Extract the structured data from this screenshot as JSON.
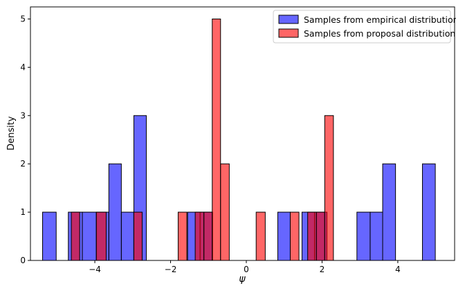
{
  "chart_data": {
    "type": "bar",
    "subtype": "overlapping histogram",
    "xlabel": "ψ",
    "ylabel": "Density",
    "xlim": [
      -5.7,
      5.5
    ],
    "ylim": [
      0,
      5.25
    ],
    "x_ticks": [
      -4,
      -2,
      0,
      2,
      4
    ],
    "x_tick_labels": [
      "−4",
      "−2",
      "0",
      "2",
      "4"
    ],
    "y_ticks": [
      0,
      1,
      2,
      3,
      4,
      5
    ],
    "y_tick_labels": [
      "0",
      "1",
      "2",
      "3",
      "4",
      "5"
    ],
    "grid": false,
    "legend_position": "top-right",
    "series": [
      {
        "name": "Samples from empirical distribution",
        "color": "#0000ff",
        "opacity": 0.6,
        "bins": [
          {
            "x0": -5.38,
            "x1": -5.02,
            "value": 1
          },
          {
            "x0": -4.7,
            "x1": -4.33,
            "value": 1
          },
          {
            "x0": -4.33,
            "x1": -3.96,
            "value": 1
          },
          {
            "x0": -3.96,
            "x1": -3.63,
            "value": 1
          },
          {
            "x0": -3.63,
            "x1": -3.3,
            "value": 2
          },
          {
            "x0": -3.3,
            "x1": -2.97,
            "value": 1
          },
          {
            "x0": -2.97,
            "x1": -2.64,
            "value": 3
          },
          {
            "x0": -1.55,
            "x1": -1.22,
            "value": 1
          },
          {
            "x0": -1.22,
            "x1": -0.89,
            "value": 1
          },
          {
            "x0": 0.83,
            "x1": 1.16,
            "value": 1
          },
          {
            "x0": 1.47,
            "x1": 1.8,
            "value": 1
          },
          {
            "x0": 1.8,
            "x1": 2.13,
            "value": 1
          },
          {
            "x0": 2.92,
            "x1": 3.27,
            "value": 1
          },
          {
            "x0": 3.27,
            "x1": 3.6,
            "value": 1
          },
          {
            "x0": 3.6,
            "x1": 3.94,
            "value": 2
          },
          {
            "x0": 4.65,
            "x1": 4.99,
            "value": 2
          }
        ]
      },
      {
        "name": "Samples from proposal distribution",
        "color": "#ff0000",
        "opacity": 0.6,
        "bins": [
          {
            "x0": -4.62,
            "x1": -4.4,
            "value": 1
          },
          {
            "x0": -3.96,
            "x1": -3.7,
            "value": 1
          },
          {
            "x0": -2.97,
            "x1": -2.75,
            "value": 1
          },
          {
            "x0": -1.8,
            "x1": -1.57,
            "value": 1
          },
          {
            "x0": -1.35,
            "x1": -1.12,
            "value": 1
          },
          {
            "x0": -1.12,
            "x1": -0.9,
            "value": 1
          },
          {
            "x0": -0.9,
            "x1": -0.68,
            "value": 5
          },
          {
            "x0": -0.68,
            "x1": -0.45,
            "value": 2
          },
          {
            "x0": 0.26,
            "x1": 0.5,
            "value": 1
          },
          {
            "x0": 1.16,
            "x1": 1.39,
            "value": 1
          },
          {
            "x0": 1.62,
            "x1": 1.85,
            "value": 1
          },
          {
            "x0": 1.85,
            "x1": 2.07,
            "value": 1
          },
          {
            "x0": 2.07,
            "x1": 2.3,
            "value": 3
          }
        ]
      }
    ]
  }
}
